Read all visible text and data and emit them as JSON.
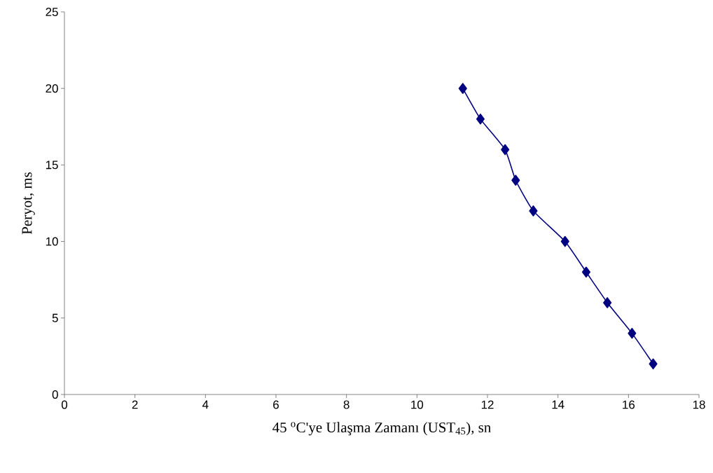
{
  "chart_data": {
    "type": "line",
    "xlabel": "45 $^{o}$C'ye Ulaşma Zamanı (UST$_{45}$), sn",
    "ylabel": "Peryot, ms",
    "x": [
      11.3,
      11.8,
      12.5,
      12.8,
      13.3,
      14.2,
      14.8,
      15.4,
      16.1,
      16.7
    ],
    "series": [
      {
        "color": "#000080",
        "values": [
          20,
          18,
          16,
          14,
          12,
          10,
          8,
          6,
          4,
          2
        ]
      }
    ],
    "xlim": [
      0,
      18
    ],
    "xticks": [
      0,
      2,
      4,
      6,
      8,
      10,
      12,
      14,
      16,
      18
    ],
    "ylim": [
      0,
      25
    ],
    "yticks": [
      0,
      5,
      10,
      15,
      20,
      25
    ],
    "grid": false,
    "marker": "diamond",
    "line_style": "solid"
  }
}
